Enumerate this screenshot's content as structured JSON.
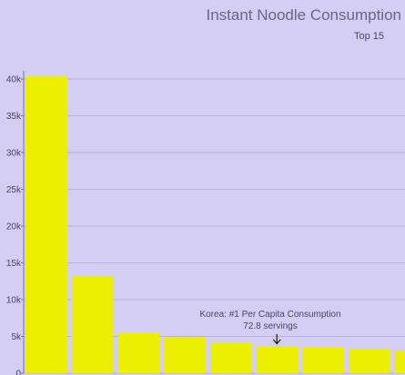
{
  "chart_data": {
    "type": "bar",
    "title": "Instant Noodle Consumption",
    "subtitle": "Top 15",
    "xlabel": "",
    "ylabel": "",
    "ylim": [
      0,
      40500
    ],
    "yticks": [
      0,
      5000,
      10000,
      15000,
      20000,
      25000,
      30000,
      35000,
      40000
    ],
    "ytick_labels": [
      "0",
      "5k",
      "10k",
      "15k",
      "20k",
      "25k",
      "30k",
      "35k",
      "40k"
    ],
    "values": [
      40450,
      13250,
      5550,
      4950,
      4200,
      3700,
      3600,
      3350,
      3100
    ],
    "bar_color": "#ecf000",
    "background_color": "#d4cef4",
    "grid": true,
    "annotation": {
      "line1": "Korea: #1 Per Capita Consumption",
      "line2": "72.8 servings",
      "bar_index": 5
    }
  }
}
